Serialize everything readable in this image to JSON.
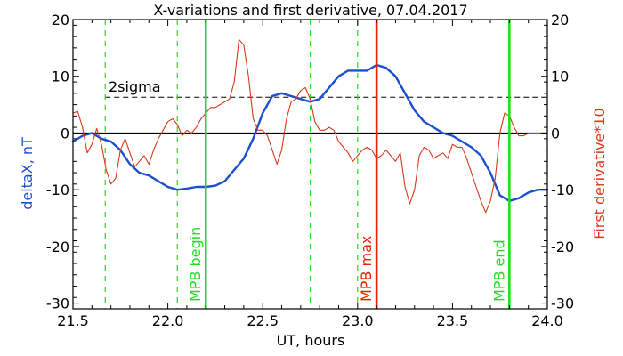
{
  "chart_data": {
    "type": "line",
    "title": "X-variations and first derivative, 07.04.2017",
    "xlabel": "UT, hours",
    "ylabel_left": "deltaX, nT",
    "ylabel_right": "First derivative*10",
    "xlim": [
      21.5,
      24.0
    ],
    "ylim": [
      -31,
      20
    ],
    "x_ticks": [
      21.5,
      22.0,
      22.5,
      23.0,
      23.5,
      24.0
    ],
    "x_tick_labels": [
      "21.5",
      "22.0",
      "22.5",
      "23.0",
      "23.5",
      "24.0"
    ],
    "y_ticks": [
      20,
      10,
      0,
      -10,
      -20,
      -30
    ],
    "y_tick_labels": [
      "20",
      "10",
      "0",
      "-10",
      "-20",
      "-30"
    ],
    "threshold_label": "2sigma",
    "threshold_value": 6.3,
    "zero_line": 0,
    "colors": {
      "deltaX": "#1a4fd0",
      "derivative": "#d43a1a",
      "marker_green": "#22dd22",
      "marker_red": "#ee2200",
      "axes": "#000000"
    },
    "dashed_green_lines": [
      21.67,
      22.05,
      22.75,
      23.0
    ],
    "markers": [
      {
        "x": 22.2,
        "label": "MPB begin",
        "color": "#22dd22"
      },
      {
        "x": 23.1,
        "label": "MPB max",
        "color": "#ee2200"
      },
      {
        "x": 23.8,
        "label": "MPB end",
        "color": "#22dd22"
      }
    ],
    "series": [
      {
        "name": "deltaX, nT",
        "color": "#1a4fd0",
        "x": [
          21.5,
          21.55,
          21.6,
          21.65,
          21.7,
          21.75,
          21.8,
          21.85,
          21.9,
          21.95,
          22.0,
          22.05,
          22.1,
          22.15,
          22.2,
          22.25,
          22.3,
          22.35,
          22.4,
          22.45,
          22.5,
          22.55,
          22.6,
          22.65,
          22.7,
          22.75,
          22.8,
          22.85,
          22.9,
          22.95,
          23.0,
          23.05,
          23.1,
          23.15,
          23.2,
          23.25,
          23.3,
          23.35,
          23.4,
          23.45,
          23.5,
          23.55,
          23.6,
          23.65,
          23.7,
          23.75,
          23.8,
          23.85,
          23.9,
          23.95,
          24.0
        ],
        "values": [
          -1.5,
          -0.5,
          0.0,
          -1.0,
          -1.5,
          -3.0,
          -5.5,
          -7.0,
          -7.5,
          -8.5,
          -9.5,
          -10.0,
          -9.8,
          -9.5,
          -9.5,
          -9.3,
          -8.5,
          -6.5,
          -4.5,
          -1.0,
          3.5,
          6.5,
          7.0,
          6.5,
          6.0,
          5.5,
          6.0,
          8.0,
          10.0,
          11.0,
          11.0,
          11.0,
          12.0,
          11.5,
          10.0,
          7.0,
          4.0,
          2.0,
          1.0,
          0.0,
          -0.5,
          -1.5,
          -2.5,
          -4.0,
          -7.0,
          -11.0,
          -12.0,
          -11.5,
          -10.5,
          -10.0,
          -10.0
        ]
      },
      {
        "name": "First derivative*10",
        "color": "#d43a1a",
        "x": [
          21.5,
          21.525,
          21.55,
          21.575,
          21.6,
          21.625,
          21.65,
          21.675,
          21.7,
          21.725,
          21.75,
          21.775,
          21.8,
          21.825,
          21.85,
          21.875,
          21.9,
          21.925,
          21.95,
          21.975,
          22.0,
          22.025,
          22.05,
          22.075,
          22.1,
          22.125,
          22.15,
          22.175,
          22.2,
          22.225,
          22.25,
          22.275,
          22.3,
          22.325,
          22.35,
          22.375,
          22.4,
          22.425,
          22.45,
          22.475,
          22.5,
          22.525,
          22.55,
          22.575,
          22.6,
          22.625,
          22.65,
          22.675,
          22.7,
          22.725,
          22.75,
          22.775,
          22.8,
          22.825,
          22.85,
          22.875,
          22.9,
          22.925,
          22.95,
          22.975,
          23.0,
          23.025,
          23.05,
          23.075,
          23.1,
          23.125,
          23.15,
          23.175,
          23.2,
          23.225,
          23.25,
          23.275,
          23.3,
          23.325,
          23.35,
          23.375,
          23.4,
          23.425,
          23.45,
          23.475,
          23.5,
          23.525,
          23.55,
          23.575,
          23.6,
          23.625,
          23.65,
          23.675,
          23.7,
          23.725,
          23.75,
          23.775,
          23.8,
          23.825,
          23.85,
          23.875,
          23.9,
          23.925,
          23.95,
          23.975,
          24.0
        ],
        "values": [
          3.5,
          3.8,
          1.0,
          -3.5,
          -2.0,
          0.8,
          -2.0,
          -6.5,
          -9.0,
          -8.0,
          -3.0,
          -1.0,
          -3.5,
          -6.0,
          -5.0,
          -4.0,
          -5.5,
          -3.0,
          -1.0,
          0.5,
          2.0,
          2.5,
          1.5,
          -0.5,
          0.5,
          0.0,
          1.0,
          2.5,
          3.5,
          4.5,
          4.5,
          5.0,
          5.5,
          6.0,
          9.0,
          16.5,
          15.5,
          10.0,
          2.5,
          0.5,
          0.5,
          -0.5,
          -3.0,
          -5.5,
          -3.0,
          2.5,
          5.5,
          6.0,
          7.5,
          8.0,
          6.0,
          2.0,
          0.5,
          0.5,
          1.0,
          0.5,
          -1.5,
          -2.5,
          -3.5,
          -5.0,
          -4.0,
          -3.0,
          -2.5,
          -3.0,
          -4.5,
          -4.0,
          -3.0,
          -4.0,
          -5.0,
          -3.5,
          -9.5,
          -12.5,
          -10.0,
          -4.0,
          -2.5,
          -3.0,
          -4.5,
          -4.0,
          -3.5,
          -4.5,
          -2.0,
          -2.5,
          -2.5,
          -4.5,
          -7.0,
          -9.5,
          -12.0,
          -14.0,
          -12.0,
          -8.0,
          0.0,
          3.5,
          3.0,
          1.0,
          -0.5,
          -0.5,
          0.0,
          0.0,
          0.0,
          0.0,
          0.0
        ]
      }
    ]
  }
}
